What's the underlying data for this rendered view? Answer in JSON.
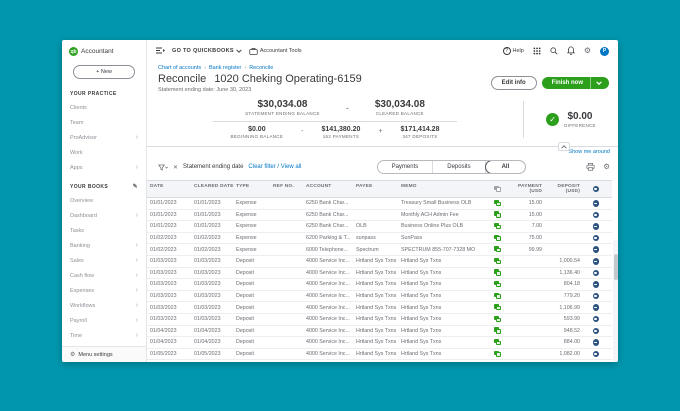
{
  "colors": {
    "background_teal": "#0097ae",
    "brand_green": "#2ca01c",
    "link_blue": "#0077c5",
    "status_navy": "#2d5480",
    "text_dark": "#393a3d",
    "text_gray": "#6b6c72"
  },
  "sidebar": {
    "logo_text": "Accountant",
    "logo_badge": "qb",
    "new_button": "+ New",
    "sections": [
      {
        "header": "YOUR PRACTICE",
        "has_pencil": false,
        "items": [
          {
            "label": "Clients",
            "arrow": false
          },
          {
            "label": "Team",
            "arrow": false
          },
          {
            "label": "ProAdvisor",
            "arrow": true
          },
          {
            "label": "Work",
            "arrow": false
          },
          {
            "label": "Apps",
            "arrow": true
          }
        ]
      },
      {
        "header": "YOUR BOOKS",
        "has_pencil": true,
        "items": [
          {
            "label": "Overview",
            "arrow": false
          },
          {
            "label": "Dashboard",
            "arrow": true
          },
          {
            "label": "Tasks",
            "arrow": false
          },
          {
            "label": "Banking",
            "arrow": true
          },
          {
            "label": "Sales",
            "arrow": true
          },
          {
            "label": "Cash flow",
            "arrow": true
          },
          {
            "label": "Expenses",
            "arrow": true
          },
          {
            "label": "Workflows",
            "arrow": true
          },
          {
            "label": "Payroll",
            "arrow": true
          },
          {
            "label": "Time",
            "arrow": true
          }
        ]
      }
    ],
    "menu_settings": "Menu settings"
  },
  "topbar": {
    "go_to_quickbooks": "GO TO QUICKBOOKS",
    "accountant_tools": "Accountant Tools",
    "help": "Help",
    "avatar_initial": "P"
  },
  "breadcrumb": [
    "Chart of accounts",
    "Bank register",
    "Reconcile"
  ],
  "header": {
    "title": "Reconcile",
    "account": "1020 Cheking Operating-6159",
    "subtitle": "Statement ending date: June 30, 2023",
    "edit_info": "Edit info",
    "finish_now": "Finish now"
  },
  "summary": {
    "statement_ending": {
      "amount": "$30,034.08",
      "label": "STATEMENT ENDING BALANCE"
    },
    "minus1": "-",
    "cleared": {
      "amount": "$30,034.08",
      "label": "CLEARED BALANCE"
    },
    "beginning": {
      "amount": "$0.00",
      "label": "BEGINNING BALANCE"
    },
    "minus2": "-",
    "payments": {
      "amount": "$141,380.20",
      "label": "162 PAYMENTS"
    },
    "plus": "+",
    "deposits": {
      "amount": "$171,414.28",
      "label": "347 DEPOSITS"
    },
    "difference": {
      "amount": "$0.00",
      "label": "DIFFERENCE",
      "check": "✓"
    }
  },
  "show_me_around": "Show me around",
  "filters": {
    "chip_x": "✕",
    "chip": "Statement ending date",
    "clear": "Clear filter / View all",
    "tabs": [
      "Payments",
      "Deposits",
      "All"
    ],
    "active_tab": "All"
  },
  "table": {
    "columns": {
      "date": "DATE",
      "cleared": "CLEARED DATE",
      "type": "TYPE",
      "ref": "REF NO.",
      "account": "ACCOUNT",
      "payee": "PAYEE",
      "memo": "MEMO",
      "payment": "PAYMENT (USD",
      "deposit": "DEPOSIT (USD)"
    },
    "rows": [
      {
        "date": "01/01/2023",
        "cleared": "01/01/2023",
        "type": "Expense",
        "ref": "",
        "account": "6250 Bank Char...",
        "payee": "",
        "memo": "Treasury Small Business OLB",
        "payment": "15.00",
        "deposit": ""
      },
      {
        "date": "01/01/2023",
        "cleared": "01/01/2023",
        "type": "Expense",
        "ref": "",
        "account": "6250 Bank Char...",
        "payee": "",
        "memo": "Monthly ACH Admin Fee",
        "payment": "15.00",
        "deposit": ""
      },
      {
        "date": "01/01/2023",
        "cleared": "01/01/2023",
        "type": "Expense",
        "ref": "",
        "account": "6250 Bank Char...",
        "payee": "OLB",
        "memo": "Business Online Plus OLB",
        "payment": "7.00",
        "deposit": ""
      },
      {
        "date": "01/02/2023",
        "cleared": "01/02/2023",
        "type": "Expense",
        "ref": "",
        "account": "6200 Parking & T...",
        "payee": "sunpass",
        "memo": "SunPass",
        "payment": "75.00",
        "deposit": ""
      },
      {
        "date": "01/02/2023",
        "cleared": "01/02/2023",
        "type": "Expense",
        "ref": "",
        "account": "6000 Telephone...",
        "payee": "Spectrum",
        "memo": "SPECTRUM 855-707-7328 MO",
        "payment": "99.99",
        "deposit": ""
      },
      {
        "date": "01/03/2023",
        "cleared": "01/03/2023",
        "type": "Deposit",
        "ref": "",
        "account": "4000 Service Inc...",
        "payee": "Hrtland Sys Txns",
        "memo": "Hrtland Sys Txns",
        "payment": "",
        "deposit": "1,000.54"
      },
      {
        "date": "01/03/2023",
        "cleared": "01/03/2023",
        "type": "Deposit",
        "ref": "",
        "account": "4000 Service Inc...",
        "payee": "Hrtland Sys Txns",
        "memo": "Hrtland Sys Txns",
        "payment": "",
        "deposit": "1,136.40"
      },
      {
        "date": "01/03/2023",
        "cleared": "01/03/2023",
        "type": "Deposit",
        "ref": "",
        "account": "4000 Service Inc...",
        "payee": "Hrtland Sys Txns",
        "memo": "Hrtland Sys Txns",
        "payment": "",
        "deposit": "804.18"
      },
      {
        "date": "01/03/2023",
        "cleared": "01/03/2023",
        "type": "Deposit",
        "ref": "",
        "account": "4000 Service Inc...",
        "payee": "Hrtland Sys Txns",
        "memo": "Hrtland Sys Txns",
        "payment": "",
        "deposit": "779.20"
      },
      {
        "date": "01/03/2023",
        "cleared": "01/03/2023",
        "type": "Deposit",
        "ref": "",
        "account": "4000 Service Inc...",
        "payee": "Hrtland Sys Txns",
        "memo": "Hrtland Sys Txns",
        "payment": "",
        "deposit": "1,106.99"
      },
      {
        "date": "01/03/2023",
        "cleared": "01/03/2023",
        "type": "Deposit",
        "ref": "",
        "account": "4000 Service Inc...",
        "payee": "Hrtland Sys Txns",
        "memo": "Hrtland Sys Txns",
        "payment": "",
        "deposit": "593.99"
      },
      {
        "date": "01/04/2023",
        "cleared": "01/04/2023",
        "type": "Deposit",
        "ref": "",
        "account": "4000 Service Inc...",
        "payee": "Hrtland Sys Txns",
        "memo": "Hrtland Sys Txns",
        "payment": "",
        "deposit": "948.52"
      },
      {
        "date": "01/04/2023",
        "cleared": "01/04/2023",
        "type": "Deposit",
        "ref": "",
        "account": "4000 Service Inc...",
        "payee": "Hrtland Sys Txns",
        "memo": "Hrtland Sys Txns",
        "payment": "",
        "deposit": "884.00"
      },
      {
        "date": "01/05/2023",
        "cleared": "01/05/2023",
        "type": "Deposit",
        "ref": "",
        "account": "4000 Service Inc...",
        "payee": "Hrtland Sys Txns",
        "memo": "Hrtland Sys Txns",
        "payment": "",
        "deposit": "1,082.00"
      }
    ]
  }
}
